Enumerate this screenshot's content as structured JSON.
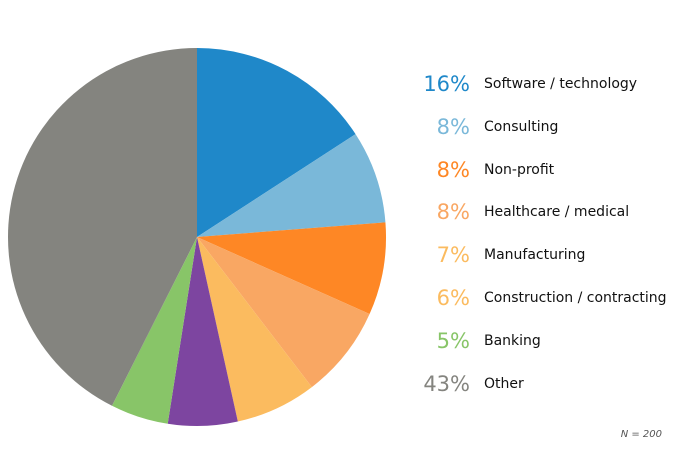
{
  "chart_data": {
    "type": "pie",
    "start_angle_deg": 0,
    "direction": "clockwise",
    "slices": [
      {
        "label": "Software / technology",
        "pct_label": "16%",
        "value": 16,
        "color": "#1f88c9"
      },
      {
        "label": "Consulting",
        "pct_label": "8%",
        "value": 8,
        "color": "#7ab8d9"
      },
      {
        "label": "Non-profit",
        "pct_label": "8%",
        "value": 8,
        "color": "#fe8725"
      },
      {
        "label": "Healthcare / medical",
        "pct_label": "8%",
        "value": 8,
        "color": "#f9a763"
      },
      {
        "label": "Manufacturing",
        "pct_label": "7%",
        "value": 7,
        "color": "#fbbb5f"
      },
      {
        "label": "Construction / contracting",
        "pct_label": "6%",
        "value": 6,
        "color": "#7d45a0"
      },
      {
        "label": "Banking",
        "pct_label": "5%",
        "value": 5,
        "color": "#88c568"
      },
      {
        "label": "Other",
        "pct_label": "43%",
        "value": 43,
        "color": "#84847f"
      }
    ],
    "legend_colors": [
      "#1f88c9",
      "#7ab8d9",
      "#fe8725",
      "#f9a763",
      "#fbbb5f",
      "#fbbb5f",
      "#88c568",
      "#84847f"
    ],
    "note": "N = 200"
  }
}
